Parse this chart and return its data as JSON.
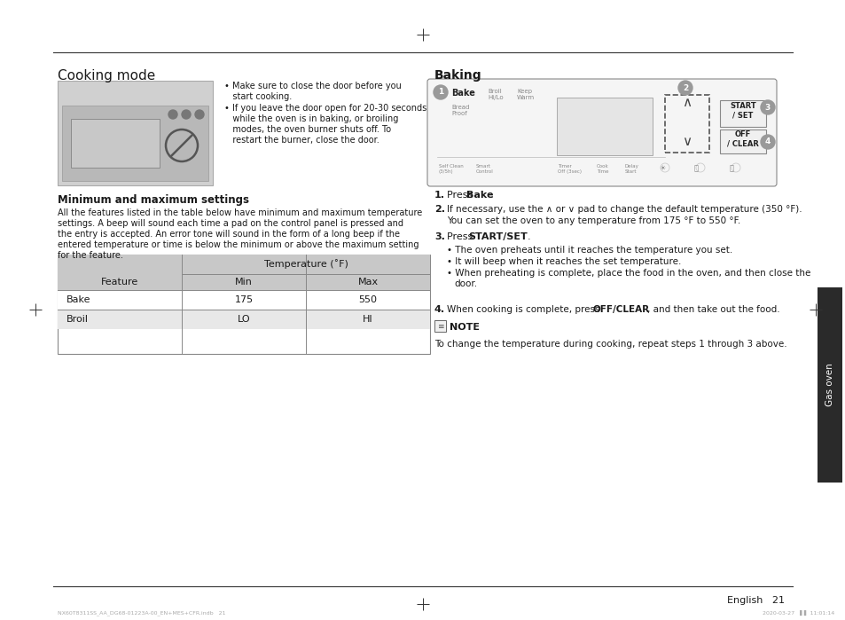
{
  "title": "Cooking mode",
  "section2_title": "Baking",
  "page_bg": "#ffffff",
  "text_color": "#1a1a1a",
  "gray_text": "#888888",
  "header_bg": "#cccccc",
  "row_bg1": "#ffffff",
  "row_bg2": "#f0f0f0",
  "table_border": "#999999",
  "min_max_title": "Minimum and maximum settings",
  "bullet1a": "• Make sure to close the door before you",
  "bullet1b": "   start cooking.",
  "bullet2a": "• If you leave the door open for 20-30 seconds",
  "bullet2b": "   while the oven is in baking, or broiling",
  "bullet2c": "   modes, the oven burner shuts off. To",
  "bullet2d": "   restart the burner, close the door.",
  "body_lines": [
    "All the features listed in the table below have minimum and maximum temperature",
    "settings. A beep will sound each time a pad on the control panel is pressed and",
    "the entry is accepted. An error tone will sound in the form of a long beep if the",
    "entered temperature or time is below the minimum or above the maximum setting",
    "for the feature."
  ],
  "table_header_col1": "Feature",
  "table_header_col2": "Temperature (˚F)",
  "table_subheader_min": "Min",
  "table_subheader_max": "Max",
  "table_row1": [
    "Bake",
    "175",
    "550"
  ],
  "table_row2": [
    "Broil",
    "LO",
    "HI"
  ],
  "step1_pre": "Press ",
  "step1_bold": "Bake",
  "step1_post": ".",
  "step2_text": "If necessary, use the ∧ or ∨ pad to change the default temperature (350 °F).",
  "step2_text2": "You can set the oven to any temperature from 175 °F to 550 °F.",
  "step3_pre": "Press ",
  "step3_bold": "START/SET",
  "step3_post": ".",
  "step3_sub1": "The oven preheats until it reaches the temperature you set.",
  "step3_sub2": "It will beep when it reaches the set temperature.",
  "step3_sub3a": "When preheating is complete, place the food in the oven, and then close the",
  "step3_sub3b": "door.",
  "step4_pre": "When cooking is complete, press ",
  "step4_bold": "OFF/CLEAR",
  "step4_post": ", and then take out the food.",
  "note_label": "NOTE",
  "note_text": "To change the temperature during cooking, repeat steps 1 through 3 above.",
  "sidebar_text": "Gas oven",
  "footer_text": "English   21",
  "footer_file": "NX60T8311SS_AA_DG68-01223A-00_EN+MES+CFR.indb   21",
  "footer_date": "2020-03-27   ▌▌ 11:01:14",
  "crosshair_color": "#333333"
}
